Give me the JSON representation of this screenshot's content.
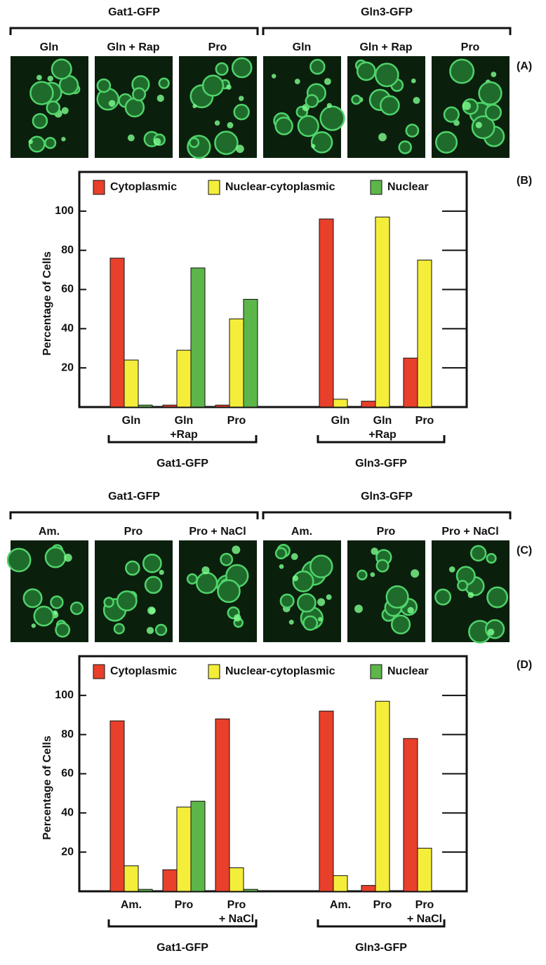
{
  "panels": [
    {
      "label": "(A)",
      "groups": [
        {
          "name": "Gat1-GFP",
          "conditions": [
            "Gln",
            "Gln + Rap",
            "Pro"
          ]
        },
        {
          "name": "Gln3-GFP",
          "conditions": [
            "Gln",
            "Gln + Rap",
            "Pro"
          ]
        }
      ]
    },
    {
      "label": "(C)",
      "groups": [
        {
          "name": "Gat1-GFP",
          "conditions": [
            "Am.",
            "Pro",
            "Pro + NaCl"
          ]
        },
        {
          "name": "Gln3-GFP",
          "conditions": [
            "Am.",
            "Pro",
            "Pro + NaCl"
          ]
        }
      ]
    }
  ],
  "chart_data": [
    {
      "type": "bar",
      "label": "(B)",
      "y_label": "Percentage of Cells",
      "groups": [
        "Gat1-GFP",
        "Gln3-GFP"
      ],
      "categories": [
        [
          "Gln"
        ],
        [
          "Gln",
          "+Rap"
        ],
        [
          "Pro"
        ],
        [
          "Gln"
        ],
        [
          "Gln",
          "+Rap"
        ],
        [
          "Pro"
        ]
      ],
      "series": [
        {
          "name": "Cytoplasmic",
          "color": "#e8402a",
          "values": [
            76,
            1,
            1,
            96,
            3,
            25
          ]
        },
        {
          "name": "Nuclear-cytoplasmic",
          "color": "#f4ee3a",
          "values": [
            24,
            29,
            45,
            4,
            97,
            75
          ]
        },
        {
          "name": "Nuclear",
          "color": "#5db64a",
          "values": [
            1,
            71,
            55,
            0,
            0,
            0
          ]
        }
      ],
      "ylim": [
        0,
        120
      ],
      "yticks": [
        20,
        40,
        60,
        80,
        100
      ]
    },
    {
      "type": "bar",
      "label": "(D)",
      "y_label": "Percentage of Cells",
      "groups": [
        "Gat1-GFP",
        "Gln3-GFP"
      ],
      "categories": [
        [
          "Am."
        ],
        [
          "Pro"
        ],
        [
          "Pro",
          "+ NaCl"
        ],
        [
          "Am."
        ],
        [
          "Pro"
        ],
        [
          "Pro",
          "+ NaCl"
        ]
      ],
      "series": [
        {
          "name": "Cytoplasmic",
          "color": "#e8402a",
          "values": [
            87,
            11,
            88,
            92,
            3,
            78
          ]
        },
        {
          "name": "Nuclear-cytoplasmic",
          "color": "#f4ee3a",
          "values": [
            13,
            43,
            12,
            8,
            97,
            22
          ]
        },
        {
          "name": "Nuclear",
          "color": "#5db64a",
          "values": [
            1,
            46,
            1,
            0,
            0,
            0
          ]
        }
      ],
      "ylim": [
        0,
        120
      ],
      "yticks": [
        20,
        40,
        60,
        80,
        100
      ]
    }
  ]
}
